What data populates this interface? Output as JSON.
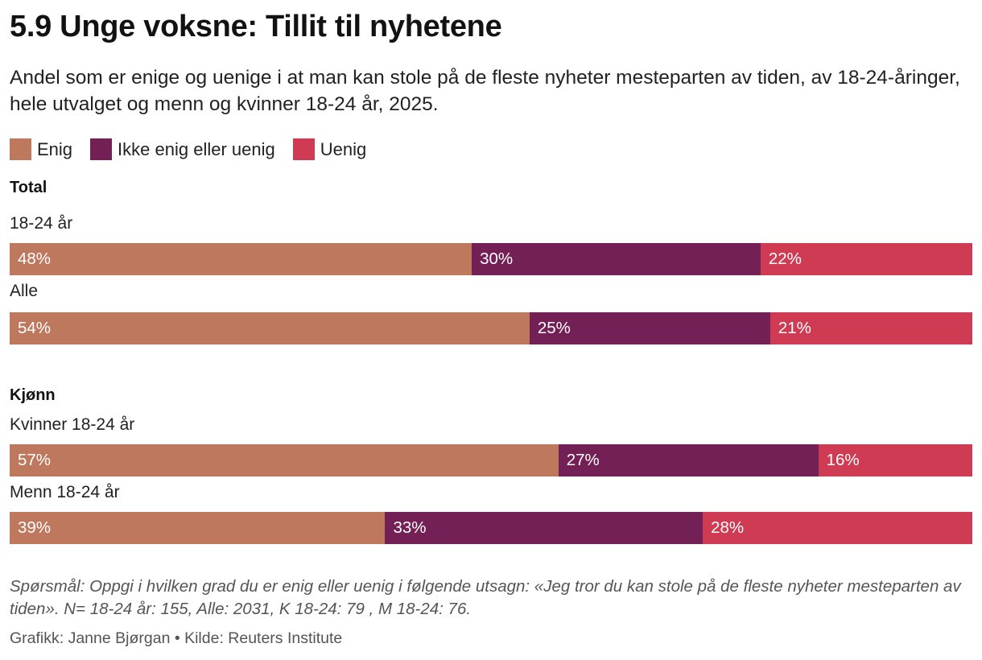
{
  "title": "5.9 Unge voksne: Tillit til nyhetene",
  "subtitle": "Andel som er enige og uenige i at man kan stole på de fleste nyheter mesteparten av tiden, av 18-24-åringer, hele utvalget og menn og kvinner 18-24 år, 2025.",
  "legend": [
    {
      "label": "Enig",
      "color": "#bd785e"
    },
    {
      "label": "Ikke enig eller uenig",
      "color": "#732057"
    },
    {
      "label": "Uenig",
      "color": "#cf3b53"
    }
  ],
  "chart_data": {
    "type": "bar",
    "stacked": true,
    "orientation": "horizontal",
    "value_suffix": "%",
    "series": [
      {
        "name": "Enig",
        "color": "#bd785e"
      },
      {
        "name": "Ikke enig eller uenig",
        "color": "#732057"
      },
      {
        "name": "Uenig",
        "color": "#cf3b53"
      }
    ],
    "groups": [
      {
        "name": "Total",
        "rows": [
          {
            "label": "18-24 år",
            "values": [
              48,
              30,
              22
            ]
          },
          {
            "label": "Alle",
            "values": [
              54,
              25,
              21
            ]
          }
        ]
      },
      {
        "name": "Kjønn",
        "rows": [
          {
            "label": "Kvinner 18-24 år",
            "values": [
              57,
              27,
              16
            ]
          },
          {
            "label": "Menn 18-24 år",
            "values": [
              39,
              33,
              28
            ]
          }
        ]
      }
    ]
  },
  "note": "Spørsmål: Oppgi i hvilken grad du er enig eller uenig i følgende utsagn: «Jeg tror du kan stole på de fleste nyheter mesteparten av tiden». N= 18-24 år: 155, Alle: 2031, K 18-24: 79 , M 18-24: 76.",
  "credit": "Grafikk: Janne Bjørgan • Kilde: Reuters Institute"
}
